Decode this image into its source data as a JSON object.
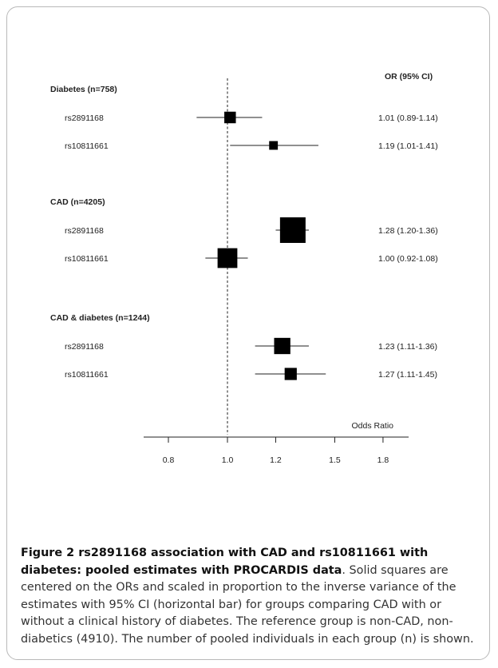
{
  "chart_data": {
    "type": "forest",
    "scale": "log",
    "reference_line": 1.0,
    "column_header": "OR (95% CI)",
    "xlabel": "Odds Ratio",
    "x_ticks": [
      "0.8",
      "1.0",
      "1.2",
      "1.5",
      "1.8"
    ],
    "x_tick_values": [
      0.8,
      1.0,
      1.2,
      1.5,
      1.8
    ],
    "xlim": [
      0.62,
      2.15
    ],
    "groups": [
      {
        "label": "Diabetes (n=758)",
        "rows": [
          {
            "label": "rs2891168",
            "or": 1.01,
            "lo": 0.89,
            "hi": 1.14,
            "ci_text": "1.01 (0.89-1.14)",
            "weight": 0.14
          },
          {
            "label": "rs10811661",
            "or": 1.19,
            "lo": 1.01,
            "hi": 1.41,
            "ci_text": "1.19 (1.01-1.41)",
            "weight": 0.06
          }
        ]
      },
      {
        "label": "CAD (n=4205)",
        "rows": [
          {
            "label": "rs2891168",
            "or": 1.28,
            "lo": 1.2,
            "hi": 1.36,
            "ci_text": "1.28 (1.20-1.36)",
            "weight": 1.0
          },
          {
            "label": "rs10811661",
            "or": 1.0,
            "lo": 0.92,
            "hi": 1.08,
            "ci_text": "1.00 (0.92-1.08)",
            "weight": 0.55
          }
        ]
      },
      {
        "label": "CAD & diabetes (n=1244)",
        "rows": [
          {
            "label": "rs2891168",
            "or": 1.23,
            "lo": 1.11,
            "hi": 1.36,
            "ci_text": "1.23 (1.11-1.36)",
            "weight": 0.34
          },
          {
            "label": "rs10811661",
            "or": 1.27,
            "lo": 1.11,
            "hi": 1.45,
            "ci_text": "1.27 (1.11-1.45)",
            "weight": 0.16
          }
        ]
      }
    ]
  },
  "caption": {
    "label": "Figure 2",
    "title": " rs2891168 association with CAD and rs10811661 with diabetes: pooled estimates with PROCARDIS data",
    "body": ". Solid squares are centered on the ORs and scaled in proportion to the inverse variance of the estimates with 95% CI (horizontal bar) for groups comparing CAD with or without a clinical history of diabetes. The reference group is non-CAD, non-diabetics (4910). The number of pooled individuals in each group (n) is shown."
  }
}
